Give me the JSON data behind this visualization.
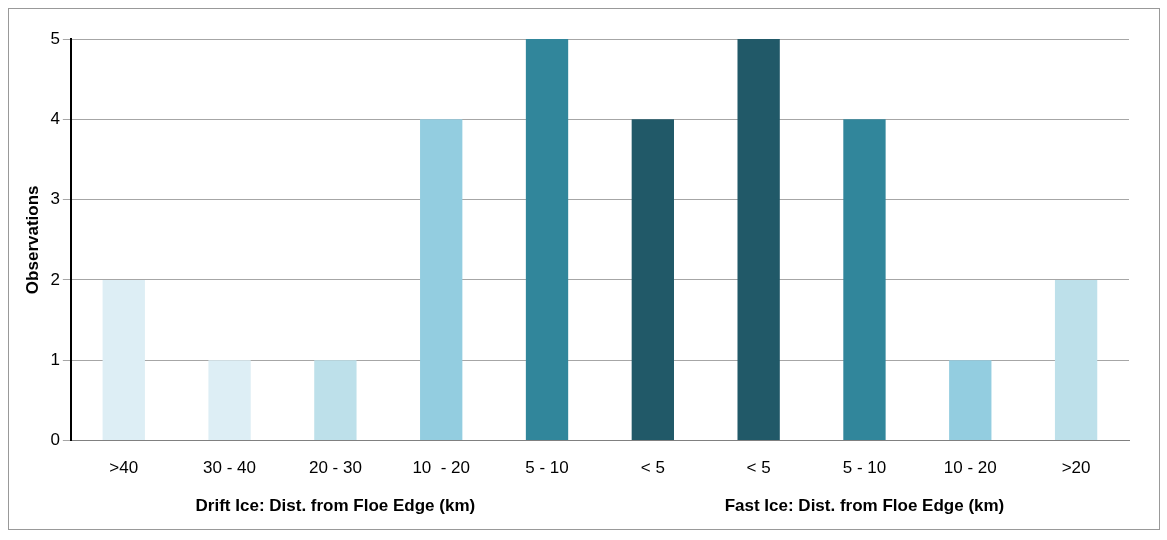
{
  "chart_data": {
    "type": "bar",
    "ylabel": "Observations",
    "categories": [
      ">40",
      "30 - 40",
      "20 - 30",
      "10  - 20",
      "5 - 10",
      "< 5",
      "< 5",
      "5 - 10",
      "10 - 20",
      ">20"
    ],
    "values": [
      2,
      1,
      1,
      4,
      5,
      4,
      5,
      4,
      1,
      2
    ],
    "colors": [
      "#ddeef5",
      "#ddeef5",
      "#bde0ea",
      "#93cde0",
      "#31869b",
      "#215968",
      "#215968",
      "#31869b",
      "#93cde0",
      "#bde0ea"
    ],
    "ylim": [
      0,
      5
    ],
    "yticks": [
      0,
      1,
      2,
      3,
      4,
      5
    ],
    "grid": "y",
    "legend": false,
    "annotations": [
      "Drift Ice: Dist. from Floe Edge (km)",
      "Fast Ice: Dist. from Floe Edge (km)"
    ]
  }
}
